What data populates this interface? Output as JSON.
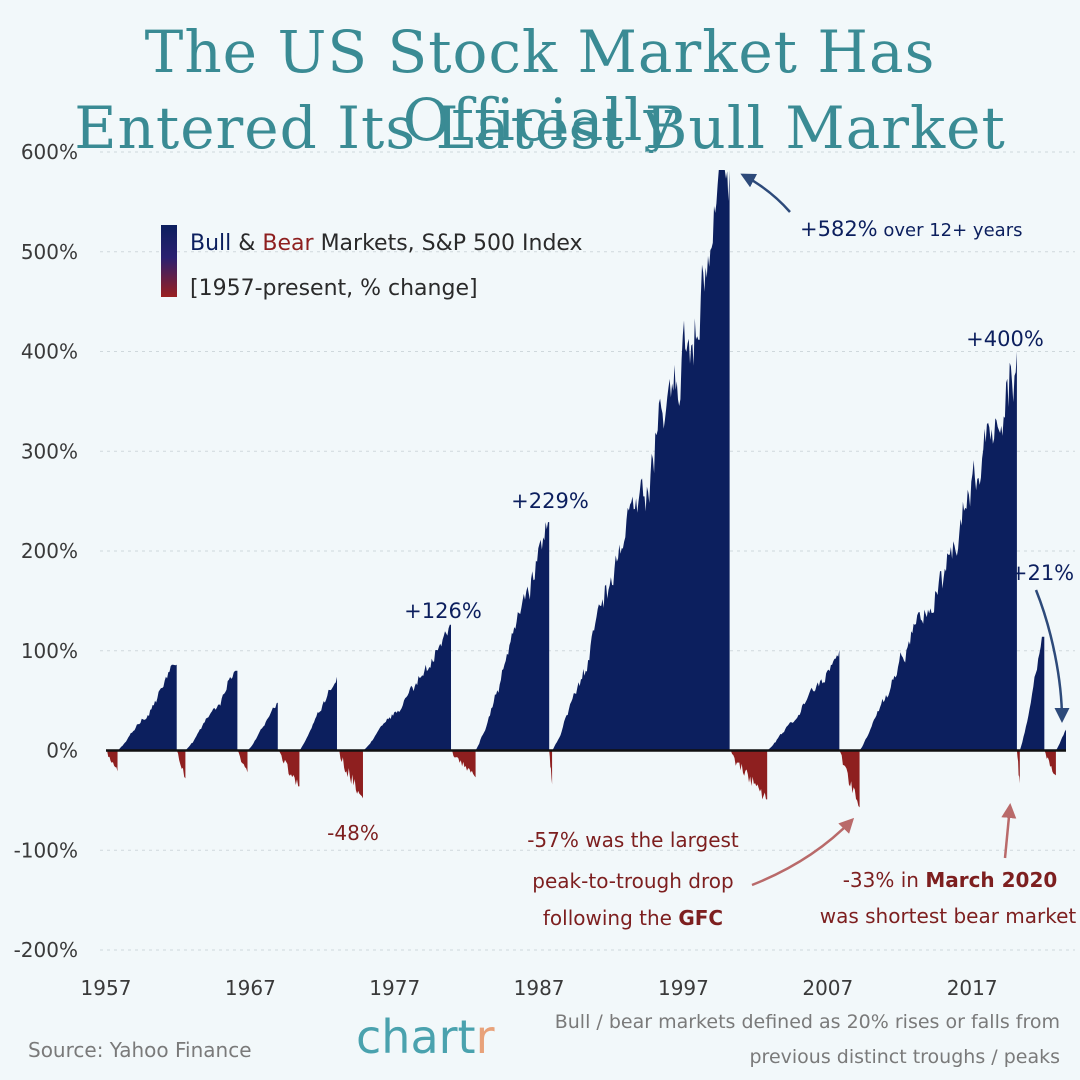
{
  "title_line1": "The US Stock Market Has Officially",
  "title_line2": "Entered Its Latest Bull Market",
  "colors": {
    "bull": "#0c1f5e",
    "bear": "#8e1f1f",
    "title": "#3a8b94",
    "brand": "#4aa2ae",
    "brand_accent": "#e8a27a",
    "background": "#f2f8fa"
  },
  "legend": {
    "bull_word": "Bull",
    "amp": " & ",
    "bear_word": "Bear",
    "rest": " Markets, S&P 500 Index",
    "subtitle": "[1957-present, % change]"
  },
  "footer": {
    "source": "Source: Yahoo Finance",
    "brand_main": "chart",
    "brand_accent": "r",
    "note_line1": "Bull / bear markets defined as 20% rises or falls from",
    "note_line2": "previous distinct troughs / peaks"
  },
  "annotations": {
    "a582_pct": "+582%",
    "a582_rest": " over 12+ years",
    "a400": "+400%",
    "a229": "+229%",
    "a126": "+126%",
    "a21": "+21%",
    "a48": "-48%",
    "gfc_line1_pct": "-57%",
    "gfc_line1_rest": " was the largest",
    "gfc_line2": "peak-to-trough drop",
    "gfc_line3_pre": "following the ",
    "gfc_line3_bold": "GFC",
    "covid_line1_pct": "-33%",
    "covid_line1_mid": " in ",
    "covid_line1_bold": "March 2020",
    "covid_line2": "was shortest bear market"
  },
  "chart_data": {
    "type": "area",
    "title": "The US Stock Market Has Officially Entered Its Latest Bull Market",
    "legend": "Bull & Bear Markets, S&P 500 Index [1957-present, % change]",
    "xlabel": "",
    "ylabel": "",
    "ylim": [
      -200,
      600
    ],
    "xlim": [
      1957,
      2023.5
    ],
    "y_ticks": [
      600,
      500,
      400,
      300,
      200,
      100,
      0,
      -100,
      -200
    ],
    "y_tick_labels": [
      "600%",
      "500%",
      "400%",
      "300%",
      "200%",
      "100%",
      "0%",
      "-100%",
      "-200%"
    ],
    "x_ticks": [
      1957,
      1967,
      1977,
      1987,
      1997,
      2007,
      2017
    ],
    "x_tick_labels": [
      "1957",
      "1967",
      "1977",
      "1987",
      "1997",
      "2007",
      "2017"
    ],
    "grid": "horizontal dashed",
    "series": [
      {
        "name": "Bull",
        "segments": [
          {
            "start": 1957.8,
            "end": 1961.9,
            "peak": 86
          },
          {
            "start": 1962.5,
            "end": 1966.1,
            "peak": 80
          },
          {
            "start": 1966.8,
            "end": 1968.9,
            "peak": 48
          },
          {
            "start": 1970.4,
            "end": 1973.0,
            "peak": 74
          },
          {
            "start": 1974.8,
            "end": 1980.9,
            "peak": 126
          },
          {
            "start": 1982.6,
            "end": 1987.7,
            "peak": 229
          },
          {
            "start": 1987.9,
            "end": 2000.2,
            "peak": 582
          },
          {
            "start": 2002.8,
            "end": 2007.8,
            "peak": 101
          },
          {
            "start": 2009.2,
            "end": 2020.1,
            "peak": 400
          },
          {
            "start": 2020.3,
            "end": 2022.0,
            "peak": 114
          },
          {
            "start": 2022.8,
            "end": 2023.5,
            "peak": 21
          }
        ]
      },
      {
        "name": "Bear",
        "segments": [
          {
            "start": 1957.0,
            "end": 1957.8,
            "trough": -21
          },
          {
            "start": 1961.9,
            "end": 1962.5,
            "trough": -28
          },
          {
            "start": 1966.1,
            "end": 1966.8,
            "trough": -22
          },
          {
            "start": 1968.9,
            "end": 1970.4,
            "trough": -36
          },
          {
            "start": 1973.0,
            "end": 1974.8,
            "trough": -48
          },
          {
            "start": 1980.9,
            "end": 1982.6,
            "trough": -27
          },
          {
            "start": 1987.7,
            "end": 1987.9,
            "trough": -34
          },
          {
            "start": 2000.2,
            "end": 2002.8,
            "trough": -49
          },
          {
            "start": 2007.8,
            "end": 2009.2,
            "trough": -57
          },
          {
            "start": 2020.1,
            "end": 2020.3,
            "trough": -33
          },
          {
            "start": 2022.0,
            "end": 2022.8,
            "trough": -25
          }
        ]
      }
    ],
    "annotations": [
      {
        "text": "+582% over 12+ years",
        "x": 2000.2,
        "y": 582
      },
      {
        "text": "+400%",
        "x": 2020.1,
        "y": 400
      },
      {
        "text": "+229%",
        "x": 1987.7,
        "y": 229
      },
      {
        "text": "+126%",
        "x": 1980.9,
        "y": 126
      },
      {
        "text": "+21%",
        "x": 2023.5,
        "y": 21
      },
      {
        "text": "-48%",
        "x": 1974.8,
        "y": -48
      },
      {
        "text": "-57% was the largest peak-to-trough drop following the GFC",
        "x": 2009.2,
        "y": -57
      },
      {
        "text": "-33% in March 2020 was shortest bear market",
        "x": 2020.2,
        "y": -33
      }
    ]
  }
}
